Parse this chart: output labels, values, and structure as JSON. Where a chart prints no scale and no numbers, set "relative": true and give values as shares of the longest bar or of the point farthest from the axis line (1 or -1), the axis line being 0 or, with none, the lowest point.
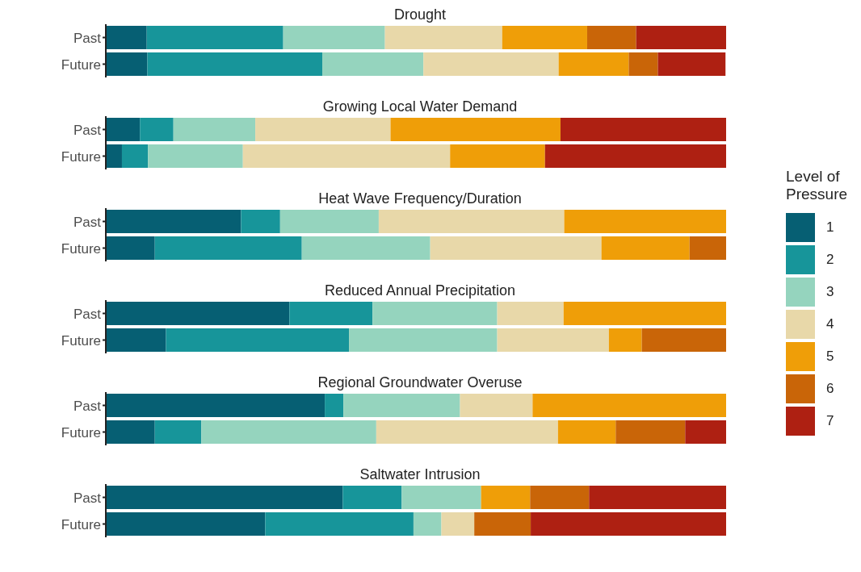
{
  "chart_data": [
    {
      "type": "bar",
      "title": "Drought",
      "categories": [
        "Past",
        "Future"
      ],
      "orientation": "horizontal",
      "stacked": true,
      "relative": true,
      "legend": "right",
      "legend_title": "Level of Pressure",
      "series": [
        {
          "name": "1",
          "color": "#065f73",
          "values": [
            0.066,
            0.067
          ]
        },
        {
          "name": "2",
          "color": "#17959a",
          "values": [
            0.22,
            0.282
          ]
        },
        {
          "name": "3",
          "color": "#95d4be",
          "values": [
            0.164,
            0.163
          ]
        },
        {
          "name": "4",
          "color": "#e8d8a9",
          "values": [
            0.189,
            0.218
          ]
        },
        {
          "name": "5",
          "color": "#ef9e08",
          "values": [
            0.137,
            0.113
          ]
        },
        {
          "name": "6",
          "color": "#c96508",
          "values": [
            0.079,
            0.047
          ]
        },
        {
          "name": "7",
          "color": "#ae2012",
          "values": [
            0.145,
            0.109
          ]
        }
      ]
    },
    {
      "type": "bar",
      "title": "Growing Local Water Demand",
      "categories": [
        "Past",
        "Future"
      ],
      "orientation": "horizontal",
      "stacked": true,
      "relative": true,
      "series": [
        {
          "name": "1",
          "color": "#065f73",
          "values": [
            0.055,
            0.026
          ]
        },
        {
          "name": "2",
          "color": "#17959a",
          "values": [
            0.054,
            0.042
          ]
        },
        {
          "name": "3",
          "color": "#95d4be",
          "values": [
            0.132,
            0.153
          ]
        },
        {
          "name": "4",
          "color": "#e8d8a9",
          "values": [
            0.218,
            0.334
          ]
        },
        {
          "name": "5",
          "color": "#ef9e08",
          "values": [
            0.274,
            0.153
          ]
        },
        {
          "name": "6",
          "color": "#c96508",
          "values": [
            0,
            0
          ]
        },
        {
          "name": "7",
          "color": "#ae2012",
          "values": [
            0.267,
            0.292
          ]
        }
      ]
    },
    {
      "type": "bar",
      "title": "Heat Wave Frequency/Duration",
      "categories": [
        "Past",
        "Future"
      ],
      "orientation": "horizontal",
      "stacked": true,
      "relative": true,
      "series": [
        {
          "name": "1",
          "color": "#065f73",
          "values": [
            0.218,
            0.079
          ]
        },
        {
          "name": "2",
          "color": "#17959a",
          "values": [
            0.063,
            0.237
          ]
        },
        {
          "name": "3",
          "color": "#95d4be",
          "values": [
            0.159,
            0.207
          ]
        },
        {
          "name": "4",
          "color": "#e8d8a9",
          "values": [
            0.299,
            0.276
          ]
        },
        {
          "name": "5",
          "color": "#ef9e08",
          "values": [
            0.261,
            0.142
          ]
        },
        {
          "name": "6",
          "color": "#c96508",
          "values": [
            0,
            0.059
          ]
        },
        {
          "name": "7",
          "color": "#ae2012",
          "values": [
            0,
            0
          ]
        }
      ]
    },
    {
      "type": "bar",
      "title": "Reduced Annual Precipitation",
      "categories": [
        "Past",
        "Future"
      ],
      "orientation": "horizontal",
      "stacked": true,
      "relative": true,
      "series": [
        {
          "name": "1",
          "color": "#065f73",
          "values": [
            0.296,
            0.097
          ]
        },
        {
          "name": "2",
          "color": "#17959a",
          "values": [
            0.134,
            0.295
          ]
        },
        {
          "name": "3",
          "color": "#95d4be",
          "values": [
            0.201,
            0.239
          ]
        },
        {
          "name": "4",
          "color": "#e8d8a9",
          "values": [
            0.107,
            0.18
          ]
        },
        {
          "name": "5",
          "color": "#ef9e08",
          "values": [
            0.262,
            0.053
          ]
        },
        {
          "name": "6",
          "color": "#c96508",
          "values": [
            0,
            0.136
          ]
        },
        {
          "name": "7",
          "color": "#ae2012",
          "values": [
            0,
            0
          ]
        }
      ]
    },
    {
      "type": "bar",
      "title": "Regional Groundwater Overuse",
      "categories": [
        "Past",
        "Future"
      ],
      "orientation": "horizontal",
      "stacked": true,
      "relative": true,
      "series": [
        {
          "name": "1",
          "color": "#065f73",
          "values": [
            0.353,
            0.079
          ]
        },
        {
          "name": "2",
          "color": "#17959a",
          "values": [
            0.03,
            0.075
          ]
        },
        {
          "name": "3",
          "color": "#95d4be",
          "values": [
            0.188,
            0.282
          ]
        },
        {
          "name": "4",
          "color": "#e8d8a9",
          "values": [
            0.117,
            0.293
          ]
        },
        {
          "name": "5",
          "color": "#ef9e08",
          "values": [
            0.312,
            0.093
          ]
        },
        {
          "name": "6",
          "color": "#c96508",
          "values": [
            0,
            0.112
          ]
        },
        {
          "name": "7",
          "color": "#ae2012",
          "values": [
            0,
            0.066
          ]
        }
      ]
    },
    {
      "type": "bar",
      "title": "Saltwater Intrusion",
      "categories": [
        "Past",
        "Future"
      ],
      "orientation": "horizontal",
      "stacked": true,
      "relative": true,
      "series": [
        {
          "name": "1",
          "color": "#065f73",
          "values": [
            0.382,
            0.257
          ]
        },
        {
          "name": "2",
          "color": "#17959a",
          "values": [
            0.095,
            0.239
          ]
        },
        {
          "name": "3",
          "color": "#95d4be",
          "values": [
            0.128,
            0.045
          ]
        },
        {
          "name": "4",
          "color": "#e8d8a9",
          "values": [
            0,
            0.053
          ]
        },
        {
          "name": "5",
          "color": "#ef9e08",
          "values": [
            0.079,
            0
          ]
        },
        {
          "name": "6",
          "color": "#c96508",
          "values": [
            0.095,
            0.091
          ]
        },
        {
          "name": "7",
          "color": "#ae2012",
          "values": [
            0.221,
            0.315
          ]
        }
      ]
    }
  ]
}
